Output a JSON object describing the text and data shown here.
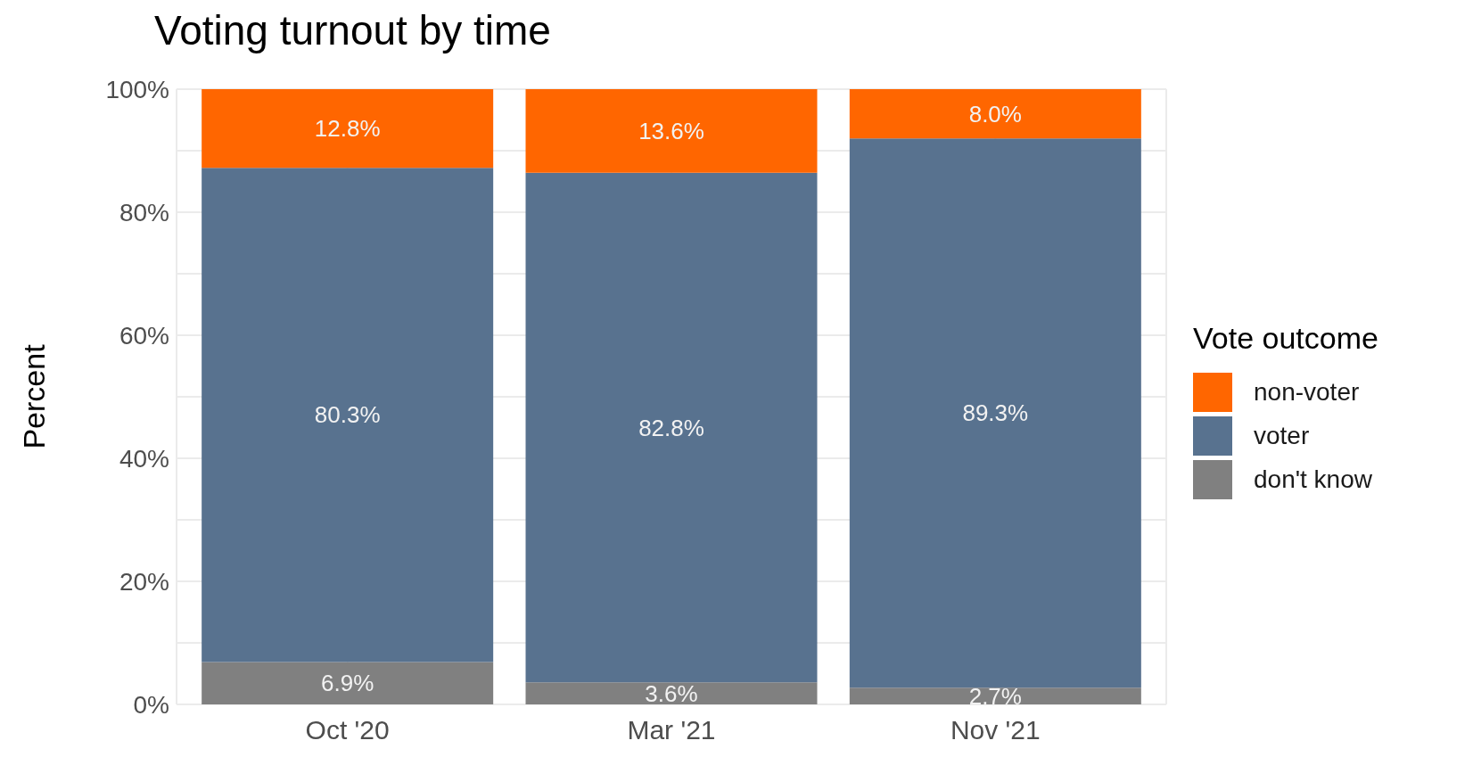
{
  "chart_data": {
    "type": "bar",
    "title": "Voting turnout by time",
    "ylabel": "Percent",
    "legend_title": "Vote outcome",
    "categories": [
      "Oct '20",
      "Mar '21",
      "Nov '21"
    ],
    "stacked": true,
    "legend": "right",
    "grid": true,
    "series": [
      {
        "name": "don't know",
        "color": "#808080",
        "values": [
          6.9,
          3.6,
          2.7
        ],
        "value_labels": [
          "6.9%",
          "3.6%",
          "2.7%"
        ]
      },
      {
        "name": "voter",
        "color": "#58728f",
        "values": [
          80.3,
          82.8,
          89.3
        ],
        "value_labels": [
          "80.3%",
          "82.8%",
          "89.3%"
        ]
      },
      {
        "name": "non-voter",
        "color": "#ff6600",
        "values": [
          12.8,
          13.6,
          8.0
        ],
        "value_labels": [
          "12.8%",
          "13.6%",
          "8.0%"
        ]
      }
    ],
    "ylim": [
      0,
      100
    ],
    "yticks": [
      {
        "value": 0,
        "label": "0%"
      },
      {
        "value": 10,
        "label": null
      },
      {
        "value": 20,
        "label": "20%"
      },
      {
        "value": 30,
        "label": null
      },
      {
        "value": 40,
        "label": "40%"
      },
      {
        "value": 50,
        "label": null
      },
      {
        "value": 60,
        "label": "60%"
      },
      {
        "value": 70,
        "label": null
      },
      {
        "value": 80,
        "label": "80%"
      },
      {
        "value": 90,
        "label": null
      },
      {
        "value": 100,
        "label": "100%"
      }
    ]
  }
}
